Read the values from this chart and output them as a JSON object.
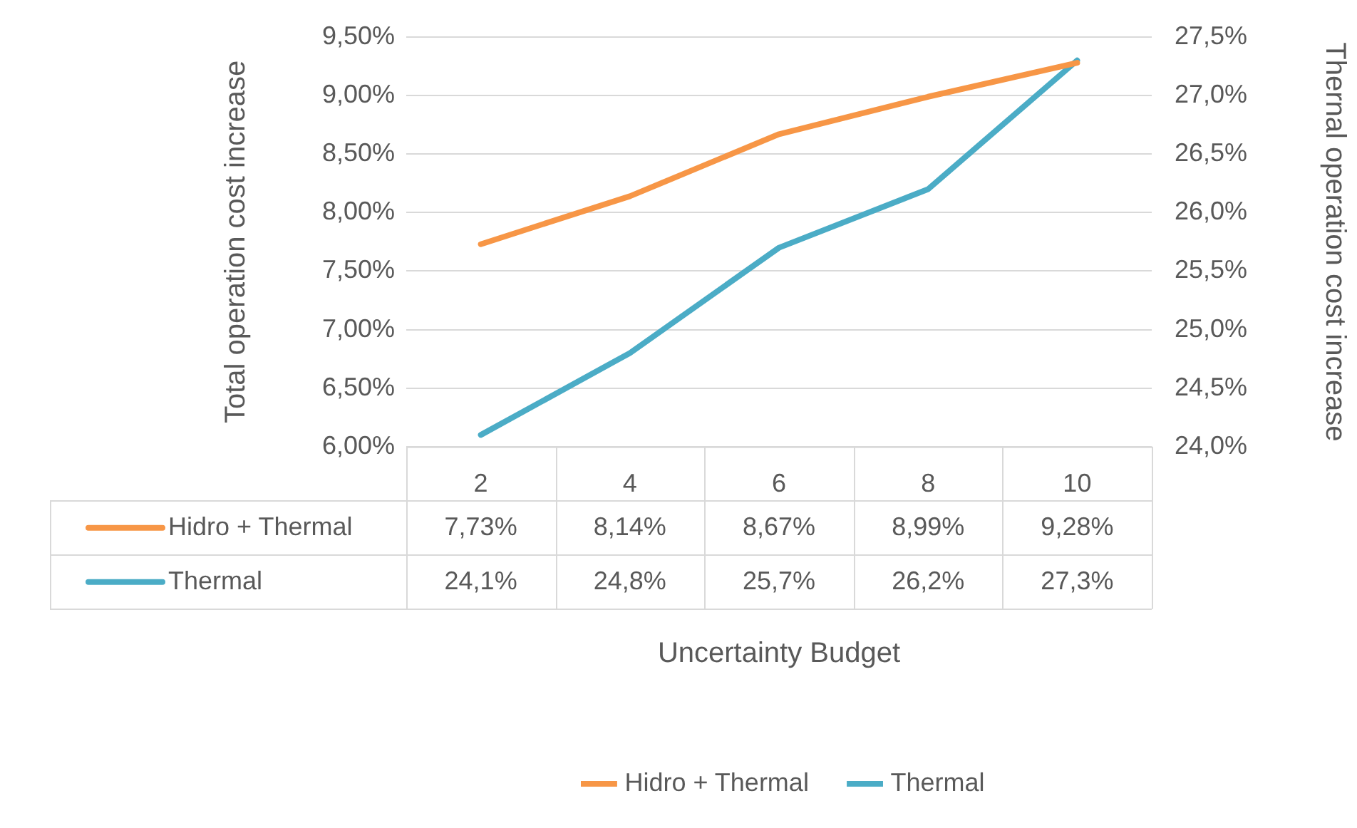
{
  "chart_data": {
    "type": "line",
    "xlabel": "Uncertainty Budget",
    "ylabel": "Total operation cost increase",
    "y2label": "Thernal operation cost increase",
    "categories": [
      "2",
      "4",
      "6",
      "8",
      "10"
    ],
    "series": [
      {
        "name": "Hidro + Thermal",
        "color": "#f79646",
        "values": [
          7.73,
          8.14,
          8.67,
          8.99,
          9.28
        ],
        "value_labels": [
          "7,73%",
          "8,14%",
          "8,67%",
          "8,99%",
          "9,28%"
        ]
      },
      {
        "name": "Thermal",
        "color": "#4bacc6",
        "axis": "y2",
        "values": [
          24.1,
          24.8,
          25.7,
          26.2,
          27.3
        ],
        "value_labels": [
          "24,1%",
          "24,8%",
          "25,7%",
          "26,2%",
          "27,3%"
        ]
      }
    ],
    "ylim": [
      6,
      9.5
    ],
    "yticks": [
      {
        "value": 6,
        "label": "6,00%"
      },
      {
        "value": 6.5,
        "label": "6,50%"
      },
      {
        "value": 7,
        "label": "7,00%"
      },
      {
        "value": 7.5,
        "label": "7,50%"
      },
      {
        "value": 8,
        "label": "8,00%"
      },
      {
        "value": 8.5,
        "label": "8,50%"
      },
      {
        "value": 9,
        "label": "9,00%"
      },
      {
        "value": 9.5,
        "label": "9,50%"
      }
    ],
    "y2lim": [
      24,
      27.5
    ],
    "y2ticks": [
      {
        "value": 24,
        "label": "24,0%"
      },
      {
        "value": 24.5,
        "label": "24,5%"
      },
      {
        "value": 25,
        "label": "25,0%"
      },
      {
        "value": 25.5,
        "label": "25,5%"
      },
      {
        "value": 26,
        "label": "26,0%"
      },
      {
        "value": 26.5,
        "label": "26,5%"
      },
      {
        "value": 27,
        "label": "27,0%"
      },
      {
        "value": 27.5,
        "label": "27,5%"
      }
    ],
    "grid": "y",
    "legend": "bottom",
    "marker": "none",
    "line_style": "solid"
  }
}
